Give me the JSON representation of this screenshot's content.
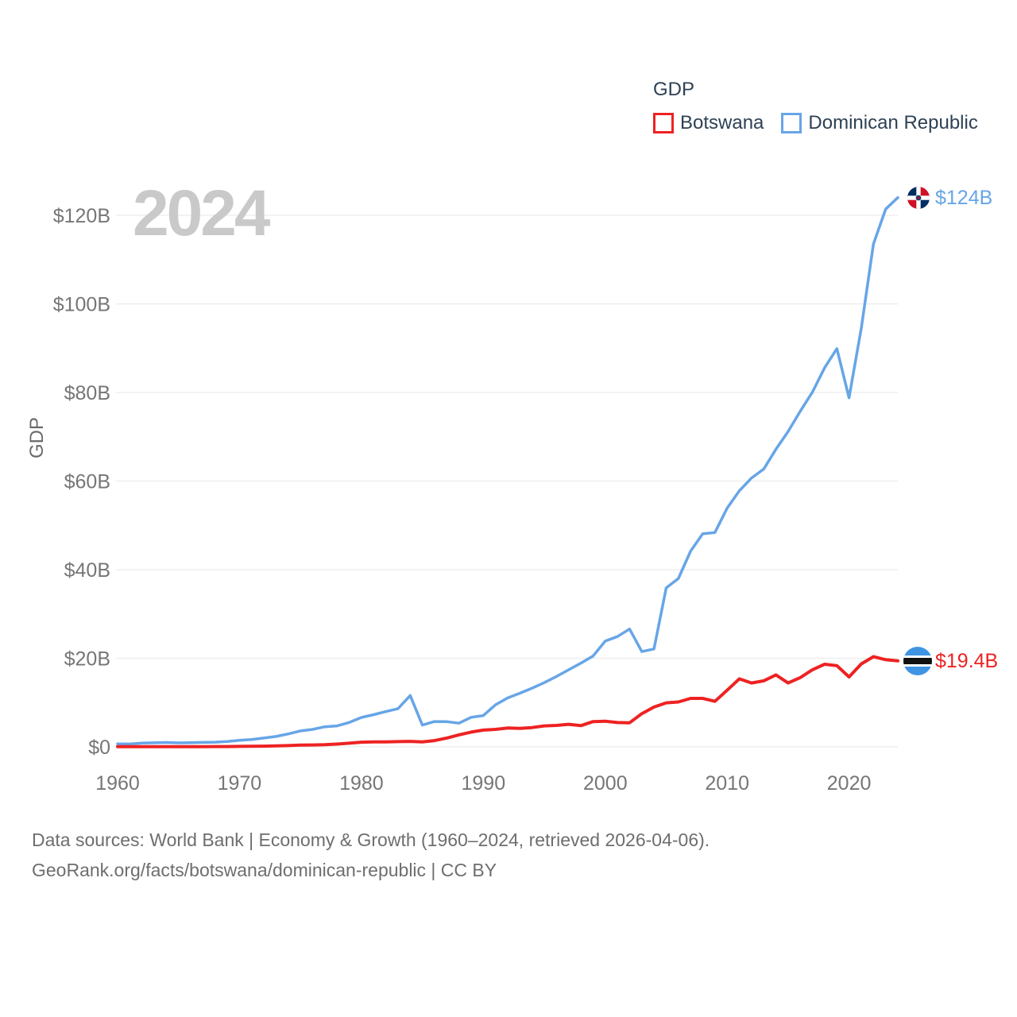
{
  "legend": {
    "title": "GDP",
    "items": [
      {
        "label": "Botswana"
      },
      {
        "label": "Dominican Republic"
      }
    ]
  },
  "watermark": "2024",
  "axes": {
    "y_title": "GDP",
    "x_ticks": [
      {
        "value": 1960,
        "label": "1960"
      },
      {
        "value": 1970,
        "label": "1970"
      },
      {
        "value": 1980,
        "label": "1980"
      },
      {
        "value": 1990,
        "label": "1990"
      },
      {
        "value": 2000,
        "label": "2000"
      },
      {
        "value": 2010,
        "label": "2010"
      },
      {
        "value": 2020,
        "label": "2020"
      }
    ],
    "y_ticks": [
      {
        "value": 0,
        "label": "$0"
      },
      {
        "value": 20,
        "label": "$20B"
      },
      {
        "value": 40,
        "label": "$40B"
      },
      {
        "value": 60,
        "label": "$60B"
      },
      {
        "value": 80,
        "label": "$80B"
      },
      {
        "value": 100,
        "label": "$100B"
      },
      {
        "value": 120,
        "label": "$120B"
      }
    ]
  },
  "end_labels": {
    "dominican_republic": "$124B",
    "botswana": "$19.4B"
  },
  "source": {
    "line1": "Data sources: World Bank | Economy & Growth (1960–2024, retrieved 2026-04-06).",
    "line2": "GeoRank.org/facts/botswana/dominican-republic | CC BY"
  },
  "colors": {
    "botswana_line": "#ee2222",
    "dominican_line": "#67a5e7",
    "legend_text": "#2e4154",
    "axis_text": "#767676",
    "gridline": "#ececec",
    "watermark": "#c9c9c9",
    "source_text": "#6e6e6e"
  },
  "chart_data": {
    "type": "line",
    "title": "GDP",
    "xlabel": "",
    "ylabel": "GDP",
    "units": "billions USD",
    "xlim": [
      1960,
      2024
    ],
    "ylim": [
      0,
      120
    ],
    "grid": "horizontal",
    "legend_position": "top-right",
    "x": [
      1960,
      1961,
      1962,
      1963,
      1964,
      1965,
      1966,
      1967,
      1968,
      1969,
      1970,
      1971,
      1972,
      1973,
      1974,
      1975,
      1976,
      1977,
      1978,
      1979,
      1980,
      1981,
      1982,
      1983,
      1984,
      1985,
      1986,
      1987,
      1988,
      1989,
      1990,
      1991,
      1992,
      1993,
      1994,
      1995,
      1996,
      1997,
      1998,
      1999,
      2000,
      2001,
      2002,
      2003,
      2004,
      2005,
      2006,
      2007,
      2008,
      2009,
      2010,
      2011,
      2012,
      2013,
      2014,
      2015,
      2016,
      2017,
      2018,
      2019,
      2020,
      2021,
      2022,
      2023,
      2024
    ],
    "series": [
      {
        "name": "Botswana",
        "color": "#ee2222",
        "end_value_label": "$19.4B",
        "values": [
          0.03,
          0.03,
          0.03,
          0.04,
          0.04,
          0.05,
          0.05,
          0.06,
          0.07,
          0.08,
          0.1,
          0.12,
          0.16,
          0.22,
          0.29,
          0.39,
          0.43,
          0.49,
          0.63,
          0.83,
          1.06,
          1.13,
          1.13,
          1.19,
          1.23,
          1.11,
          1.41,
          2.0,
          2.71,
          3.34,
          3.79,
          3.95,
          4.26,
          4.17,
          4.36,
          4.73,
          4.85,
          5.09,
          4.79,
          5.7,
          5.79,
          5.49,
          5.44,
          7.49,
          8.99,
          9.93,
          10.13,
          10.94,
          10.95,
          10.27,
          12.79,
          15.35,
          14.42,
          14.9,
          16.25,
          14.42,
          15.65,
          17.41,
          18.66,
          18.34,
          15.78,
          18.73,
          20.35,
          19.67,
          19.4
        ]
      },
      {
        "name": "Dominican Republic",
        "color": "#67a5e7",
        "end_value_label": "$124B",
        "values": [
          0.67,
          0.64,
          0.85,
          0.92,
          0.99,
          0.89,
          0.94,
          1.0,
          1.06,
          1.2,
          1.49,
          1.67,
          1.99,
          2.35,
          2.93,
          3.6,
          3.95,
          4.54,
          4.73,
          5.5,
          6.63,
          7.27,
          7.96,
          8.62,
          11.59,
          4.91,
          5.72,
          5.68,
          5.34,
          6.68,
          7.07,
          9.5,
          11.05,
          12.1,
          13.25,
          14.5,
          15.9,
          17.4,
          18.9,
          20.5,
          23.9,
          24.9,
          26.6,
          21.5,
          22.1,
          35.9,
          38.0,
          44.2,
          48.1,
          48.4,
          53.9,
          57.8,
          60.7,
          62.7,
          67.2,
          71.2,
          75.8,
          80.1,
          85.6,
          89.9,
          78.8,
          94.5,
          113.5,
          121.4,
          124.0
        ]
      }
    ]
  }
}
